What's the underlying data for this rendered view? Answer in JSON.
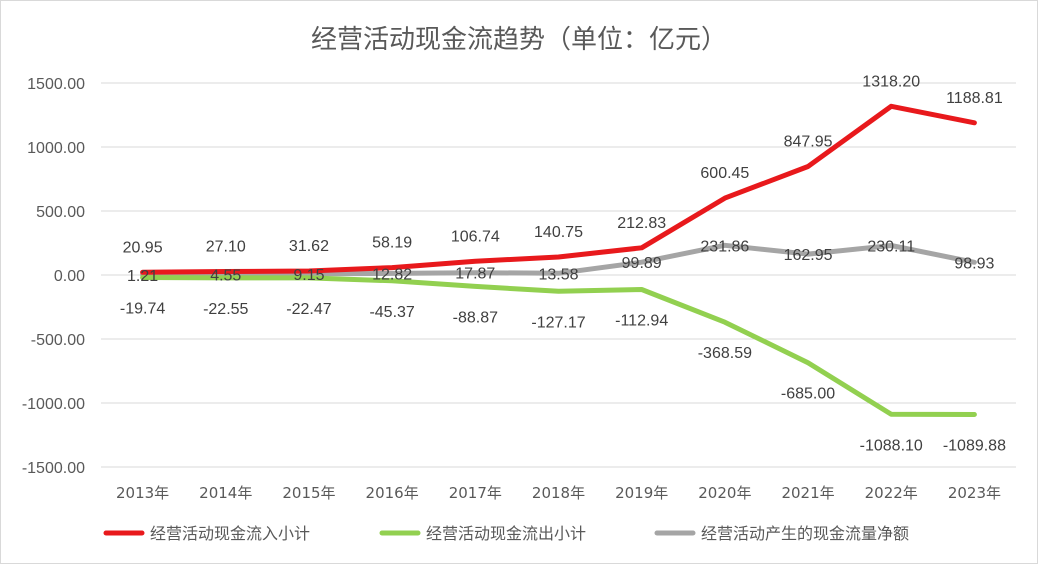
{
  "chart_data": {
    "type": "line",
    "title": "经营活动现金流趋势（单位：亿元）",
    "categories": [
      "2013年",
      "2014年",
      "2015年",
      "2016年",
      "2017年",
      "2018年",
      "2019年",
      "2020年",
      "2021年",
      "2022年",
      "2023年"
    ],
    "ylim": [
      -1500,
      1500
    ],
    "yticks": [
      "1500.00",
      "1000.00",
      "500.00",
      "0.00",
      "-500.00",
      "-1000.00",
      "-1500.00"
    ],
    "grid": true,
    "legend_position": "bottom",
    "series": [
      {
        "name": "经营活动现金流入小计",
        "color": "#e8191c",
        "values": [
          20.95,
          27.1,
          31.62,
          58.19,
          106.74,
          140.75,
          212.83,
          600.45,
          847.95,
          1318.2,
          1188.81
        ],
        "labels": [
          "20.95",
          "27.10",
          "31.62",
          "58.19",
          "106.74",
          "140.75",
          "212.83",
          "600.45",
          "847.95",
          "1318.20",
          "1188.81"
        ]
      },
      {
        "name": "经营活动现金流出小计",
        "color": "#92d050",
        "values": [
          -19.74,
          -22.55,
          -22.47,
          -45.37,
          -88.87,
          -127.17,
          -112.94,
          -368.59,
          -685.0,
          -1088.1,
          -1089.88
        ],
        "labels": [
          "-19.74",
          "-22.55",
          "-22.47",
          "-45.37",
          "-88.87",
          "-127.17",
          "-112.94",
          "-368.59",
          "-685.00",
          "-1088.10",
          "-1089.88"
        ]
      },
      {
        "name": "经营活动产生的现金流量净额",
        "color": "#a5a5a5",
        "values": [
          1.21,
          4.55,
          9.15,
          12.82,
          17.87,
          13.58,
          99.89,
          231.86,
          162.95,
          230.11,
          98.93
        ],
        "labels": [
          "1.21",
          "4.55",
          "9.15",
          "12.82",
          "17.87",
          "13.58",
          "99.89",
          "231.86",
          "162.95",
          "230.11",
          "98.93"
        ]
      }
    ]
  }
}
